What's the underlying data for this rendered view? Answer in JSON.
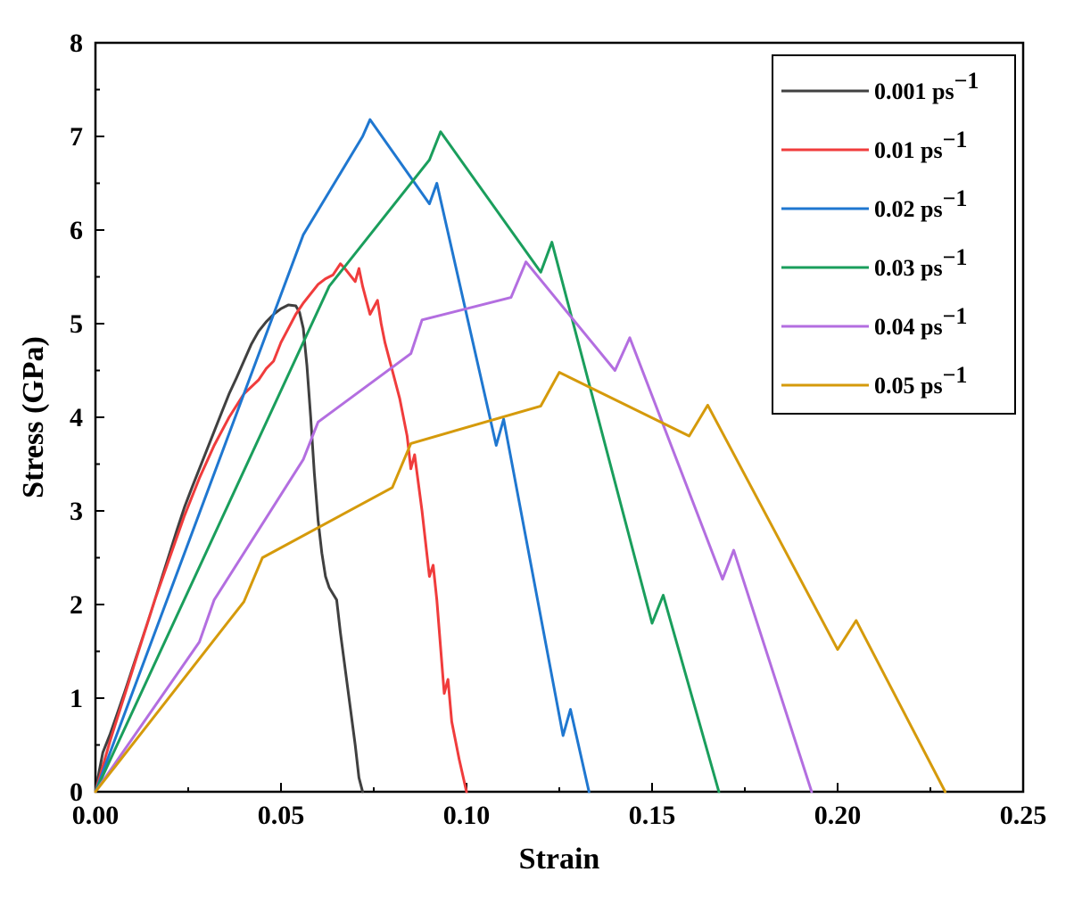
{
  "chart_data": {
    "type": "line",
    "title": "",
    "xlabel": "Strain",
    "ylabel": "Stress (GPa)",
    "xlim": [
      0,
      0.25
    ],
    "ylim": [
      0,
      8
    ],
    "xticks": [
      "0.00",
      "0.05",
      "0.10",
      "0.15",
      "0.20",
      "0.25"
    ],
    "yticks": [
      "0",
      "1",
      "2",
      "3",
      "4",
      "5",
      "6",
      "7",
      "8"
    ],
    "grid": false,
    "legend": "top-right",
    "legend_unit": "ps",
    "legend_exponent": "−1",
    "series": [
      {
        "name": "0.001",
        "color": "#404040",
        "x": [
          0.0,
          0.001,
          0.002,
          0.004,
          0.006,
          0.008,
          0.01,
          0.012,
          0.014,
          0.016,
          0.018,
          0.02,
          0.022,
          0.024,
          0.026,
          0.028,
          0.03,
          0.032,
          0.034,
          0.036,
          0.038,
          0.04,
          0.042,
          0.044,
          0.046,
          0.048,
          0.05,
          0.052,
          0.054,
          0.055,
          0.056,
          0.057,
          0.058,
          0.059,
          0.06,
          0.061,
          0.062,
          0.063,
          0.065,
          0.066,
          0.068,
          0.07,
          0.071,
          0.072
        ],
        "y": [
          0.0,
          0.22,
          0.42,
          0.62,
          0.85,
          1.08,
          1.32,
          1.56,
          1.8,
          2.05,
          2.3,
          2.55,
          2.8,
          3.04,
          3.25,
          3.45,
          3.65,
          3.85,
          4.05,
          4.25,
          4.42,
          4.6,
          4.78,
          4.92,
          5.02,
          5.1,
          5.16,
          5.2,
          5.19,
          5.12,
          4.95,
          4.55,
          4.0,
          3.4,
          2.9,
          2.55,
          2.3,
          2.18,
          2.05,
          1.7,
          1.1,
          0.5,
          0.15,
          0.0
        ]
      },
      {
        "name": "0.01",
        "color": "#f03c3c",
        "x": [
          0.0,
          0.004,
          0.008,
          0.012,
          0.016,
          0.02,
          0.024,
          0.028,
          0.032,
          0.036,
          0.04,
          0.044,
          0.046,
          0.048,
          0.05,
          0.052,
          0.054,
          0.056,
          0.058,
          0.06,
          0.062,
          0.064,
          0.066,
          0.067,
          0.068,
          0.07,
          0.071,
          0.072,
          0.074,
          0.076,
          0.077,
          0.078,
          0.08,
          0.082,
          0.084,
          0.085,
          0.086,
          0.088,
          0.09,
          0.091,
          0.092,
          0.094,
          0.095,
          0.096,
          0.098,
          0.1
        ],
        "y": [
          0.0,
          0.55,
          1.05,
          1.55,
          2.05,
          2.5,
          2.95,
          3.35,
          3.7,
          4.0,
          4.25,
          4.4,
          4.52,
          4.6,
          4.8,
          4.95,
          5.1,
          5.22,
          5.32,
          5.42,
          5.48,
          5.52,
          5.64,
          5.6,
          5.55,
          5.45,
          5.59,
          5.4,
          5.1,
          5.25,
          5.0,
          4.8,
          4.5,
          4.2,
          3.8,
          3.45,
          3.6,
          3.0,
          2.3,
          2.42,
          2.05,
          1.05,
          1.2,
          0.75,
          0.35,
          0.0
        ]
      },
      {
        "name": "0.02",
        "color": "#1f77d0",
        "x": [
          0.0,
          0.056,
          0.072,
          0.074,
          0.09,
          0.092,
          0.108,
          0.11,
          0.126,
          0.128,
          0.133
        ],
        "y": [
          0.0,
          5.95,
          7.0,
          7.18,
          6.28,
          6.5,
          3.7,
          3.98,
          0.6,
          0.88,
          0.0
        ]
      },
      {
        "name": "0.03",
        "color": "#1a9e5c",
        "x": [
          0.0,
          0.063,
          0.09,
          0.093,
          0.12,
          0.123,
          0.15,
          0.153,
          0.168
        ],
        "y": [
          0.0,
          5.4,
          6.75,
          7.05,
          5.55,
          5.87,
          1.8,
          2.1,
          0.0
        ]
      },
      {
        "name": "0.04",
        "color": "#b36ee0",
        "x": [
          0.0,
          0.028,
          0.032,
          0.056,
          0.06,
          0.085,
          0.088,
          0.112,
          0.116,
          0.14,
          0.144,
          0.169,
          0.172,
          0.193
        ],
        "y": [
          0.0,
          1.6,
          2.05,
          3.55,
          3.95,
          4.68,
          5.04,
          5.28,
          5.66,
          4.5,
          4.85,
          2.27,
          2.58,
          0.0
        ]
      },
      {
        "name": "0.05",
        "color": "#d59a0b",
        "x": [
          0.0,
          0.04,
          0.045,
          0.08,
          0.085,
          0.12,
          0.125,
          0.16,
          0.165,
          0.2,
          0.205,
          0.229
        ],
        "y": [
          0.0,
          2.03,
          2.5,
          3.25,
          3.72,
          4.12,
          4.48,
          3.8,
          4.13,
          1.52,
          1.83,
          0.0
        ]
      }
    ]
  }
}
